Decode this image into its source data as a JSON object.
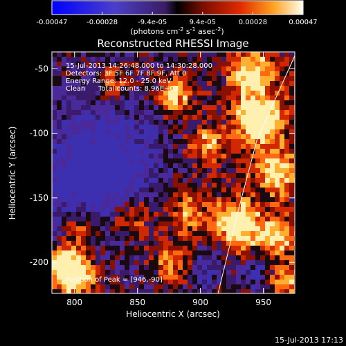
{
  "chart_data": {
    "type": "heatmap",
    "title": "Reconstructed RHESSI Image",
    "xlabel": "Heliocentric X (arcsec)",
    "ylabel": "Heliocentric Y (arcsec)",
    "xlim": [
      782,
      975
    ],
    "ylim": [
      -224,
      -37
    ],
    "x_ticks": [
      800,
      850,
      900,
      950
    ],
    "y_ticks": [
      -50,
      -100,
      -150,
      -200
    ],
    "colorbar": {
      "ticks": [
        "-0.00047",
        "-0.00028",
        "-9.4e-05",
        "9.4e-05",
        "0.00028",
        "0.00047"
      ],
      "units_text": "(photons cm",
      "units_exp1": "-2",
      "units_mid": " s",
      "units_exp2": "-1",
      "units_mid2": " asec",
      "units_exp3": "-2",
      "units_close": ")",
      "range": [
        -0.00047,
        0.00047
      ]
    },
    "annotations": {
      "time_range": "15-Jul-2013 14:26:48.000 to 14:30:28.000",
      "detectors": "Detectors: 3F 5F 6F 7F 8F 9F, Att 0",
      "energy": "Energy Range: 12.0 - 25.0 keV",
      "clean_label": "Clean",
      "counts": "Total counts: 8.96E+03",
      "peak": "Position of Peak = [946,-90]"
    },
    "peak": {
      "x": 946,
      "y": -90
    },
    "limb": [
      [
        975,
        -40
      ],
      [
        945,
        -105
      ],
      [
        930,
        -160
      ],
      [
        920,
        -200
      ],
      [
        914,
        -224
      ]
    ],
    "colors": {
      "background": "#000000",
      "axes": "#ffffff"
    }
  },
  "footer": {
    "timestamp": "15-Jul-2013 17:13"
  }
}
